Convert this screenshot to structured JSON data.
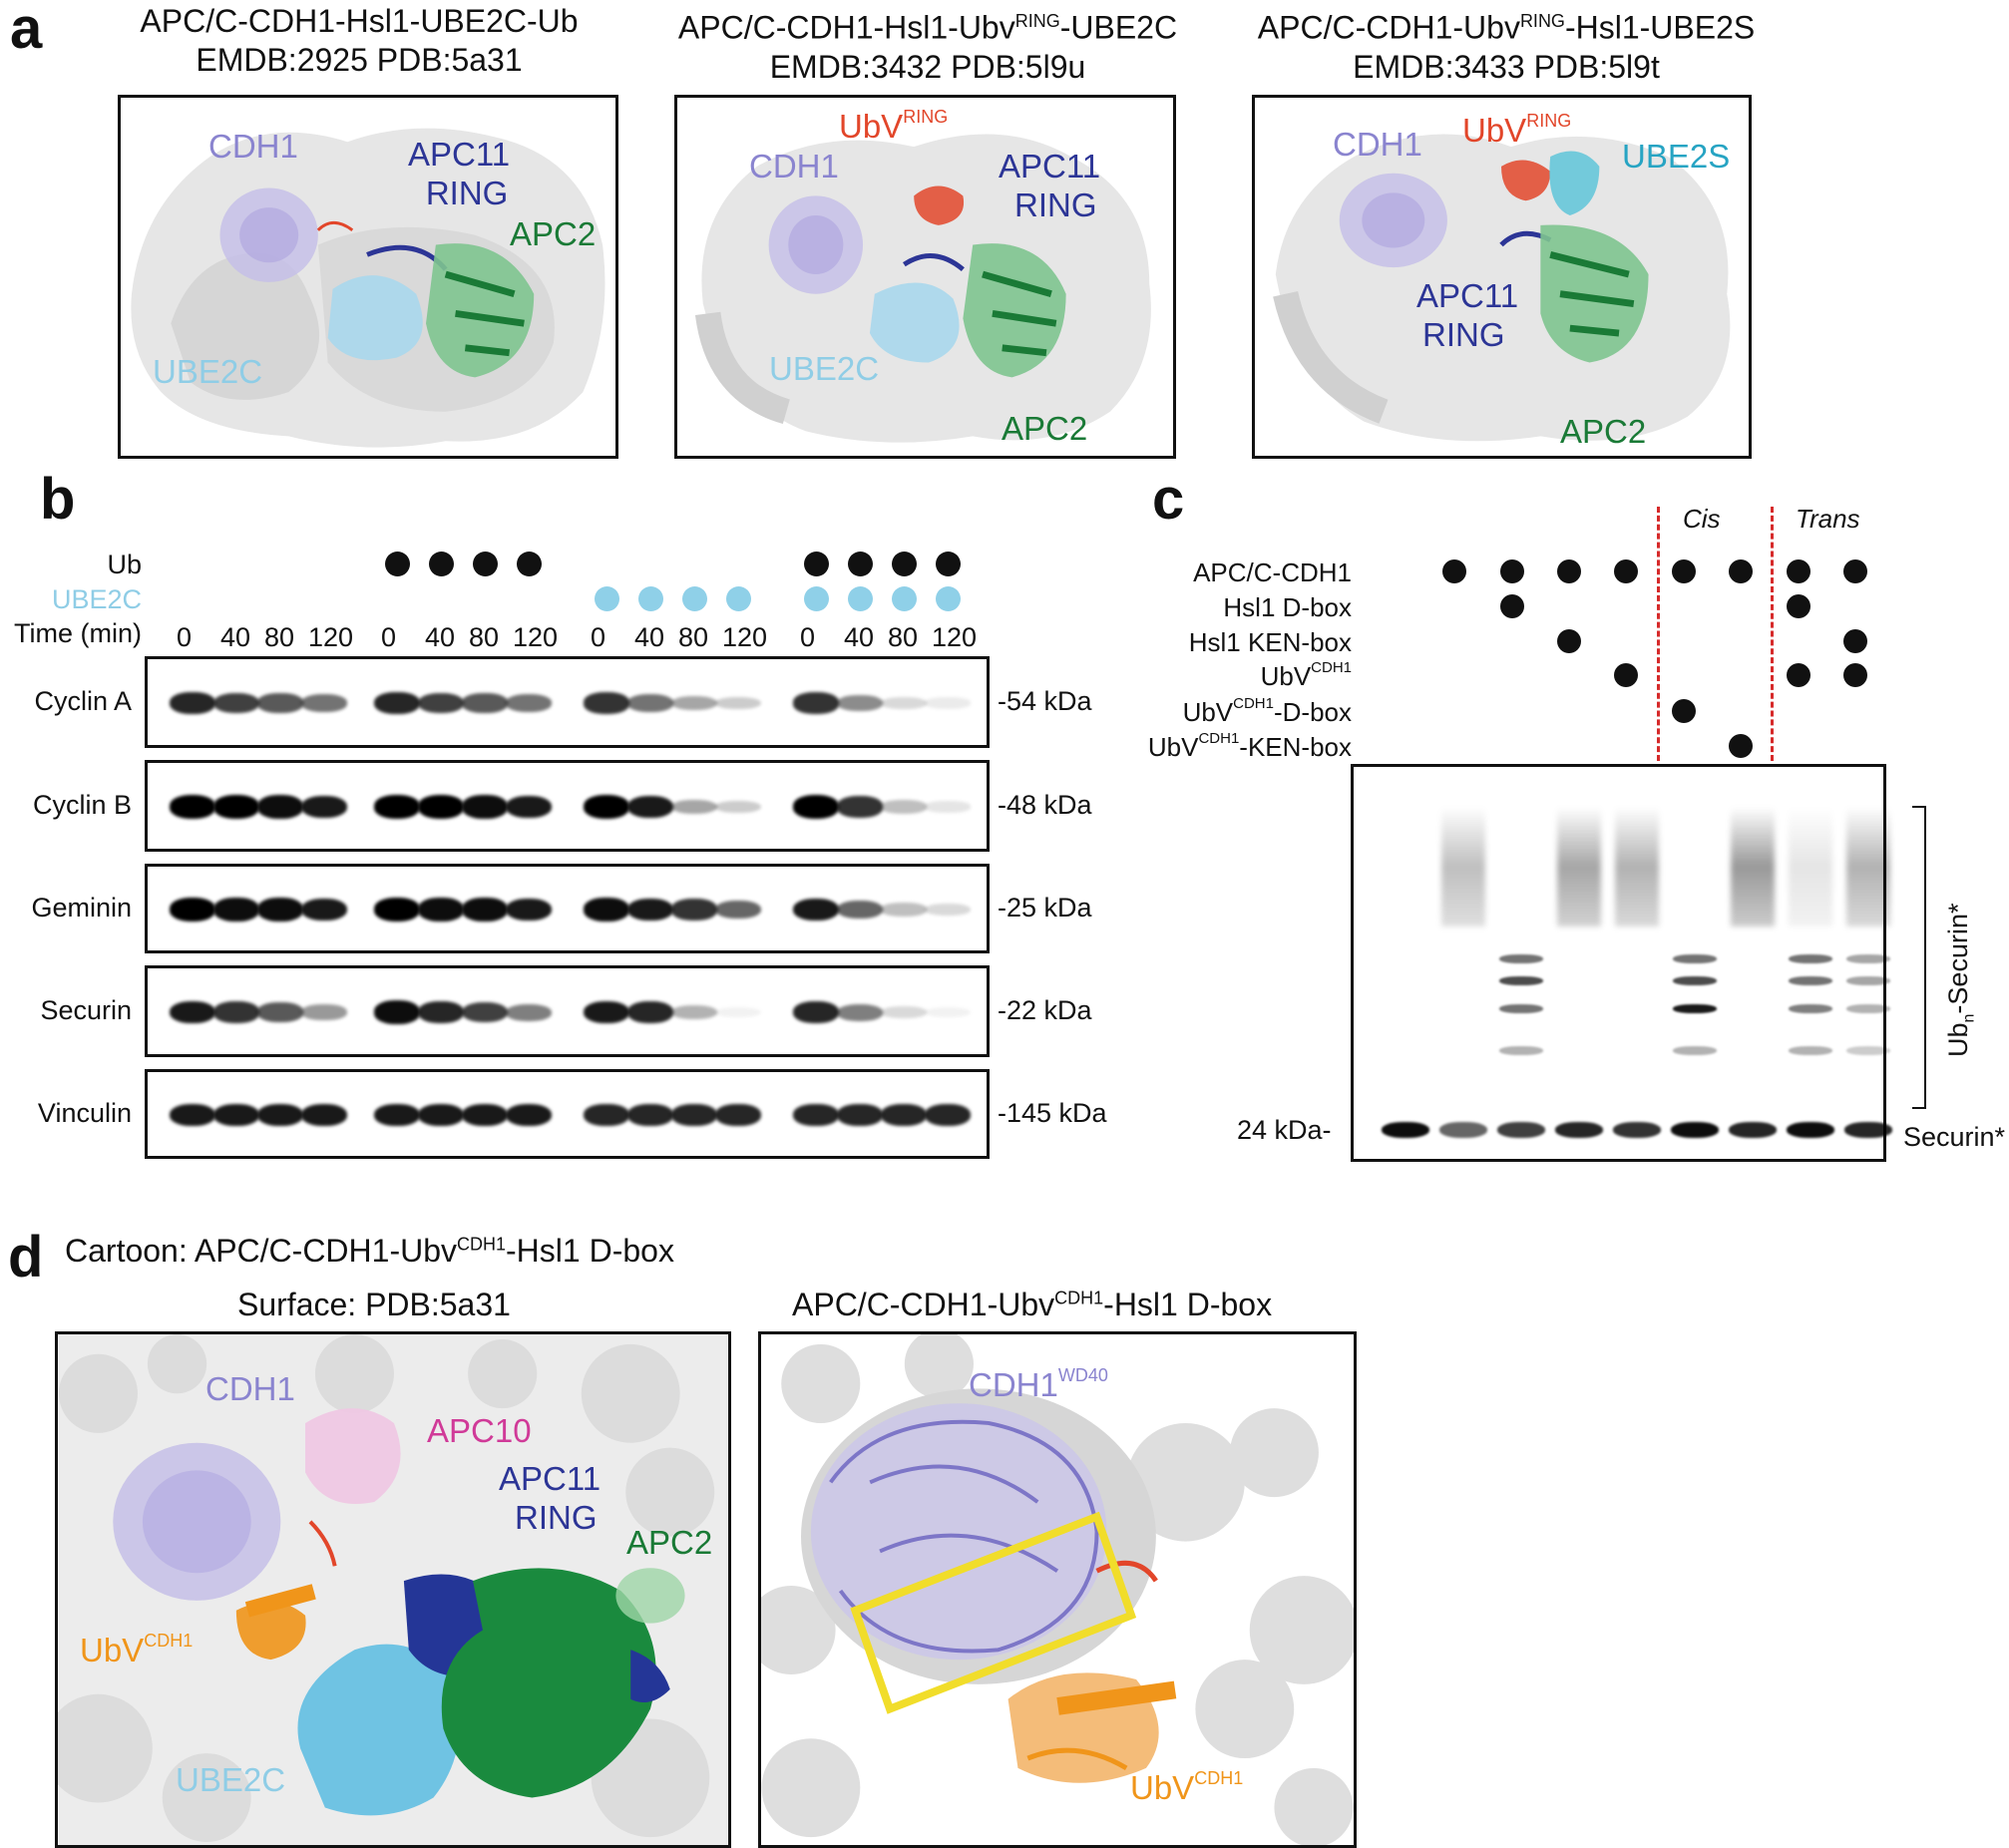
{
  "panel_a": {
    "label": "a",
    "titles": [
      {
        "line1": "APC/C-CDH1-Hsl1-UBE2C-Ub",
        "line2": "EMDB:2925 PDB:5a31"
      },
      {
        "line1_pre": "APC/C-CDH1-Hsl1-Ubv",
        "line1_sup": "RING",
        "line1_post": "-UBE2C",
        "line2": "EMDB:3432 PDB:5l9u"
      },
      {
        "line1_pre": "APC/C-CDH1-Ubv",
        "line1_sup": "RING",
        "line1_post": "-Hsl1-UBE2S",
        "line2": "EMDB:3433 PDB:5l9t"
      }
    ],
    "box1": {
      "cdh1": "CDH1",
      "apc11a": "APC11",
      "apc11b": "RING",
      "apc2": "APC2",
      "ube2c": "UBE2C"
    },
    "box2": {
      "ubv": "UbV",
      "ubv_sup": "RING",
      "cdh1": "CDH1",
      "apc11a": "APC11",
      "apc11b": "RING",
      "ube2c": "UBE2C",
      "apc2": "APC2"
    },
    "box3": {
      "cdh1": "CDH1",
      "ubv": "UbV",
      "ubv_sup": "RING",
      "ube2s": "UBE2S",
      "apc11a": "APC11",
      "apc11b": "RING",
      "apc2": "APC2"
    }
  },
  "panel_b": {
    "label": "b",
    "row_ub": "Ub",
    "row_ube2c": "UBE2C",
    "row_time": "Time (min)",
    "time_labels": [
      "0",
      "40",
      "80",
      "120"
    ],
    "blots": [
      {
        "name": "Cyclin A",
        "kda": "-54 kDa",
        "intensity": [
          [
            0.85,
            0.75,
            0.65,
            0.55
          ],
          [
            0.85,
            0.75,
            0.65,
            0.55
          ],
          [
            0.8,
            0.55,
            0.35,
            0.2
          ],
          [
            0.8,
            0.45,
            0.15,
            0.08
          ]
        ]
      },
      {
        "name": "Cyclin B",
        "kda": "-48 kDa",
        "intensity": [
          [
            1,
            1,
            0.95,
            0.9
          ],
          [
            1,
            1,
            0.95,
            0.9
          ],
          [
            1,
            0.9,
            0.35,
            0.2
          ],
          [
            1,
            0.8,
            0.25,
            0.1
          ]
        ]
      },
      {
        "name": "Geminin",
        "kda": "-25 kDa",
        "intensity": [
          [
            1,
            0.95,
            0.95,
            0.9
          ],
          [
            1,
            0.95,
            0.95,
            0.9
          ],
          [
            0.95,
            0.9,
            0.8,
            0.6
          ],
          [
            0.9,
            0.6,
            0.25,
            0.15
          ]
        ]
      },
      {
        "name": "Securin",
        "kda": "-22 kDa",
        "intensity": [
          [
            0.9,
            0.8,
            0.65,
            0.4
          ],
          [
            0.95,
            0.85,
            0.75,
            0.5
          ],
          [
            0.9,
            0.85,
            0.3,
            0.05
          ],
          [
            0.85,
            0.5,
            0.15,
            0.05
          ]
        ]
      },
      {
        "name": "Vinculin",
        "kda": "-145 kDa",
        "intensity": [
          [
            0.9,
            0.9,
            0.9,
            0.9
          ],
          [
            0.9,
            0.9,
            0.9,
            0.9
          ],
          [
            0.85,
            0.85,
            0.85,
            0.85
          ],
          [
            0.85,
            0.85,
            0.85,
            0.85
          ]
        ]
      }
    ]
  },
  "panel_c": {
    "label": "c",
    "cis": "Cis",
    "trans": "Trans",
    "rows": [
      {
        "pre": "APC/C-CDH1",
        "sup": "",
        "post": ""
      },
      {
        "pre": "Hsl1 D-box",
        "sup": "",
        "post": ""
      },
      {
        "pre": "Hsl1 KEN-box",
        "sup": "",
        "post": ""
      },
      {
        "pre": "UbV",
        "sup": "CDH1",
        "post": ""
      },
      {
        "pre": "UbV",
        "sup": "CDH1",
        "post": "-D-box"
      },
      {
        "pre": "UbV",
        "sup": "CDH1",
        "post": "-KEN-box"
      }
    ],
    "dots": [
      [
        1,
        1,
        1,
        1,
        1,
        1,
        1,
        1
      ],
      [
        0,
        1,
        0,
        0,
        0,
        0,
        1,
        0
      ],
      [
        0,
        0,
        1,
        0,
        0,
        0,
        0,
        1
      ],
      [
        0,
        0,
        0,
        1,
        0,
        0,
        1,
        1
      ],
      [
        0,
        0,
        0,
        0,
        1,
        0,
        0,
        0
      ],
      [
        0,
        0,
        0,
        0,
        0,
        1,
        0,
        0
      ]
    ],
    "marker": "24 kDa-",
    "ub_label_pre": "Ub",
    "ub_label_sub": "n",
    "ub_label_post": "-Securin*",
    "securin": "Securin*"
  },
  "panel_d": {
    "label": "d",
    "cartoon_pre": "Cartoon: APC/C-CDH1-Ubv",
    "cartoon_sup": "CDH1",
    "cartoon_post": "-Hsl1 D-box",
    "surface": "Surface: PDB:5a31",
    "right_pre": "APC/C-CDH1-Ubv",
    "right_sup": "CDH1",
    "right_post": "-Hsl1 D-box",
    "left": {
      "cdh1": "CDH1",
      "apc10": "APC10",
      "apc11a": "APC11",
      "apc11b": "RING",
      "apc2": "APC2",
      "ubv": "UbV",
      "ubv_sup": "CDH1",
      "ube2c": "UBE2C"
    },
    "right": {
      "cdh1": "CDH1",
      "cdh1_sup": "WD40",
      "ubv": "UbV",
      "ubv_sup": "CDH1"
    }
  },
  "colors": {
    "cdh1": "#8a84cf",
    "apc11": "#2c3596",
    "apc2": "#1a7a36",
    "ube2c": "#8fcde6",
    "ubv_ring": "#e2462a",
    "ube2s": "#27a4c3",
    "apc10": "#d03a98",
    "ubv_cdh1": "#f0951a",
    "ube2c_dot": "#8fd0e8",
    "dash": "#d62a2a",
    "highlight": "#f1dd2a"
  }
}
